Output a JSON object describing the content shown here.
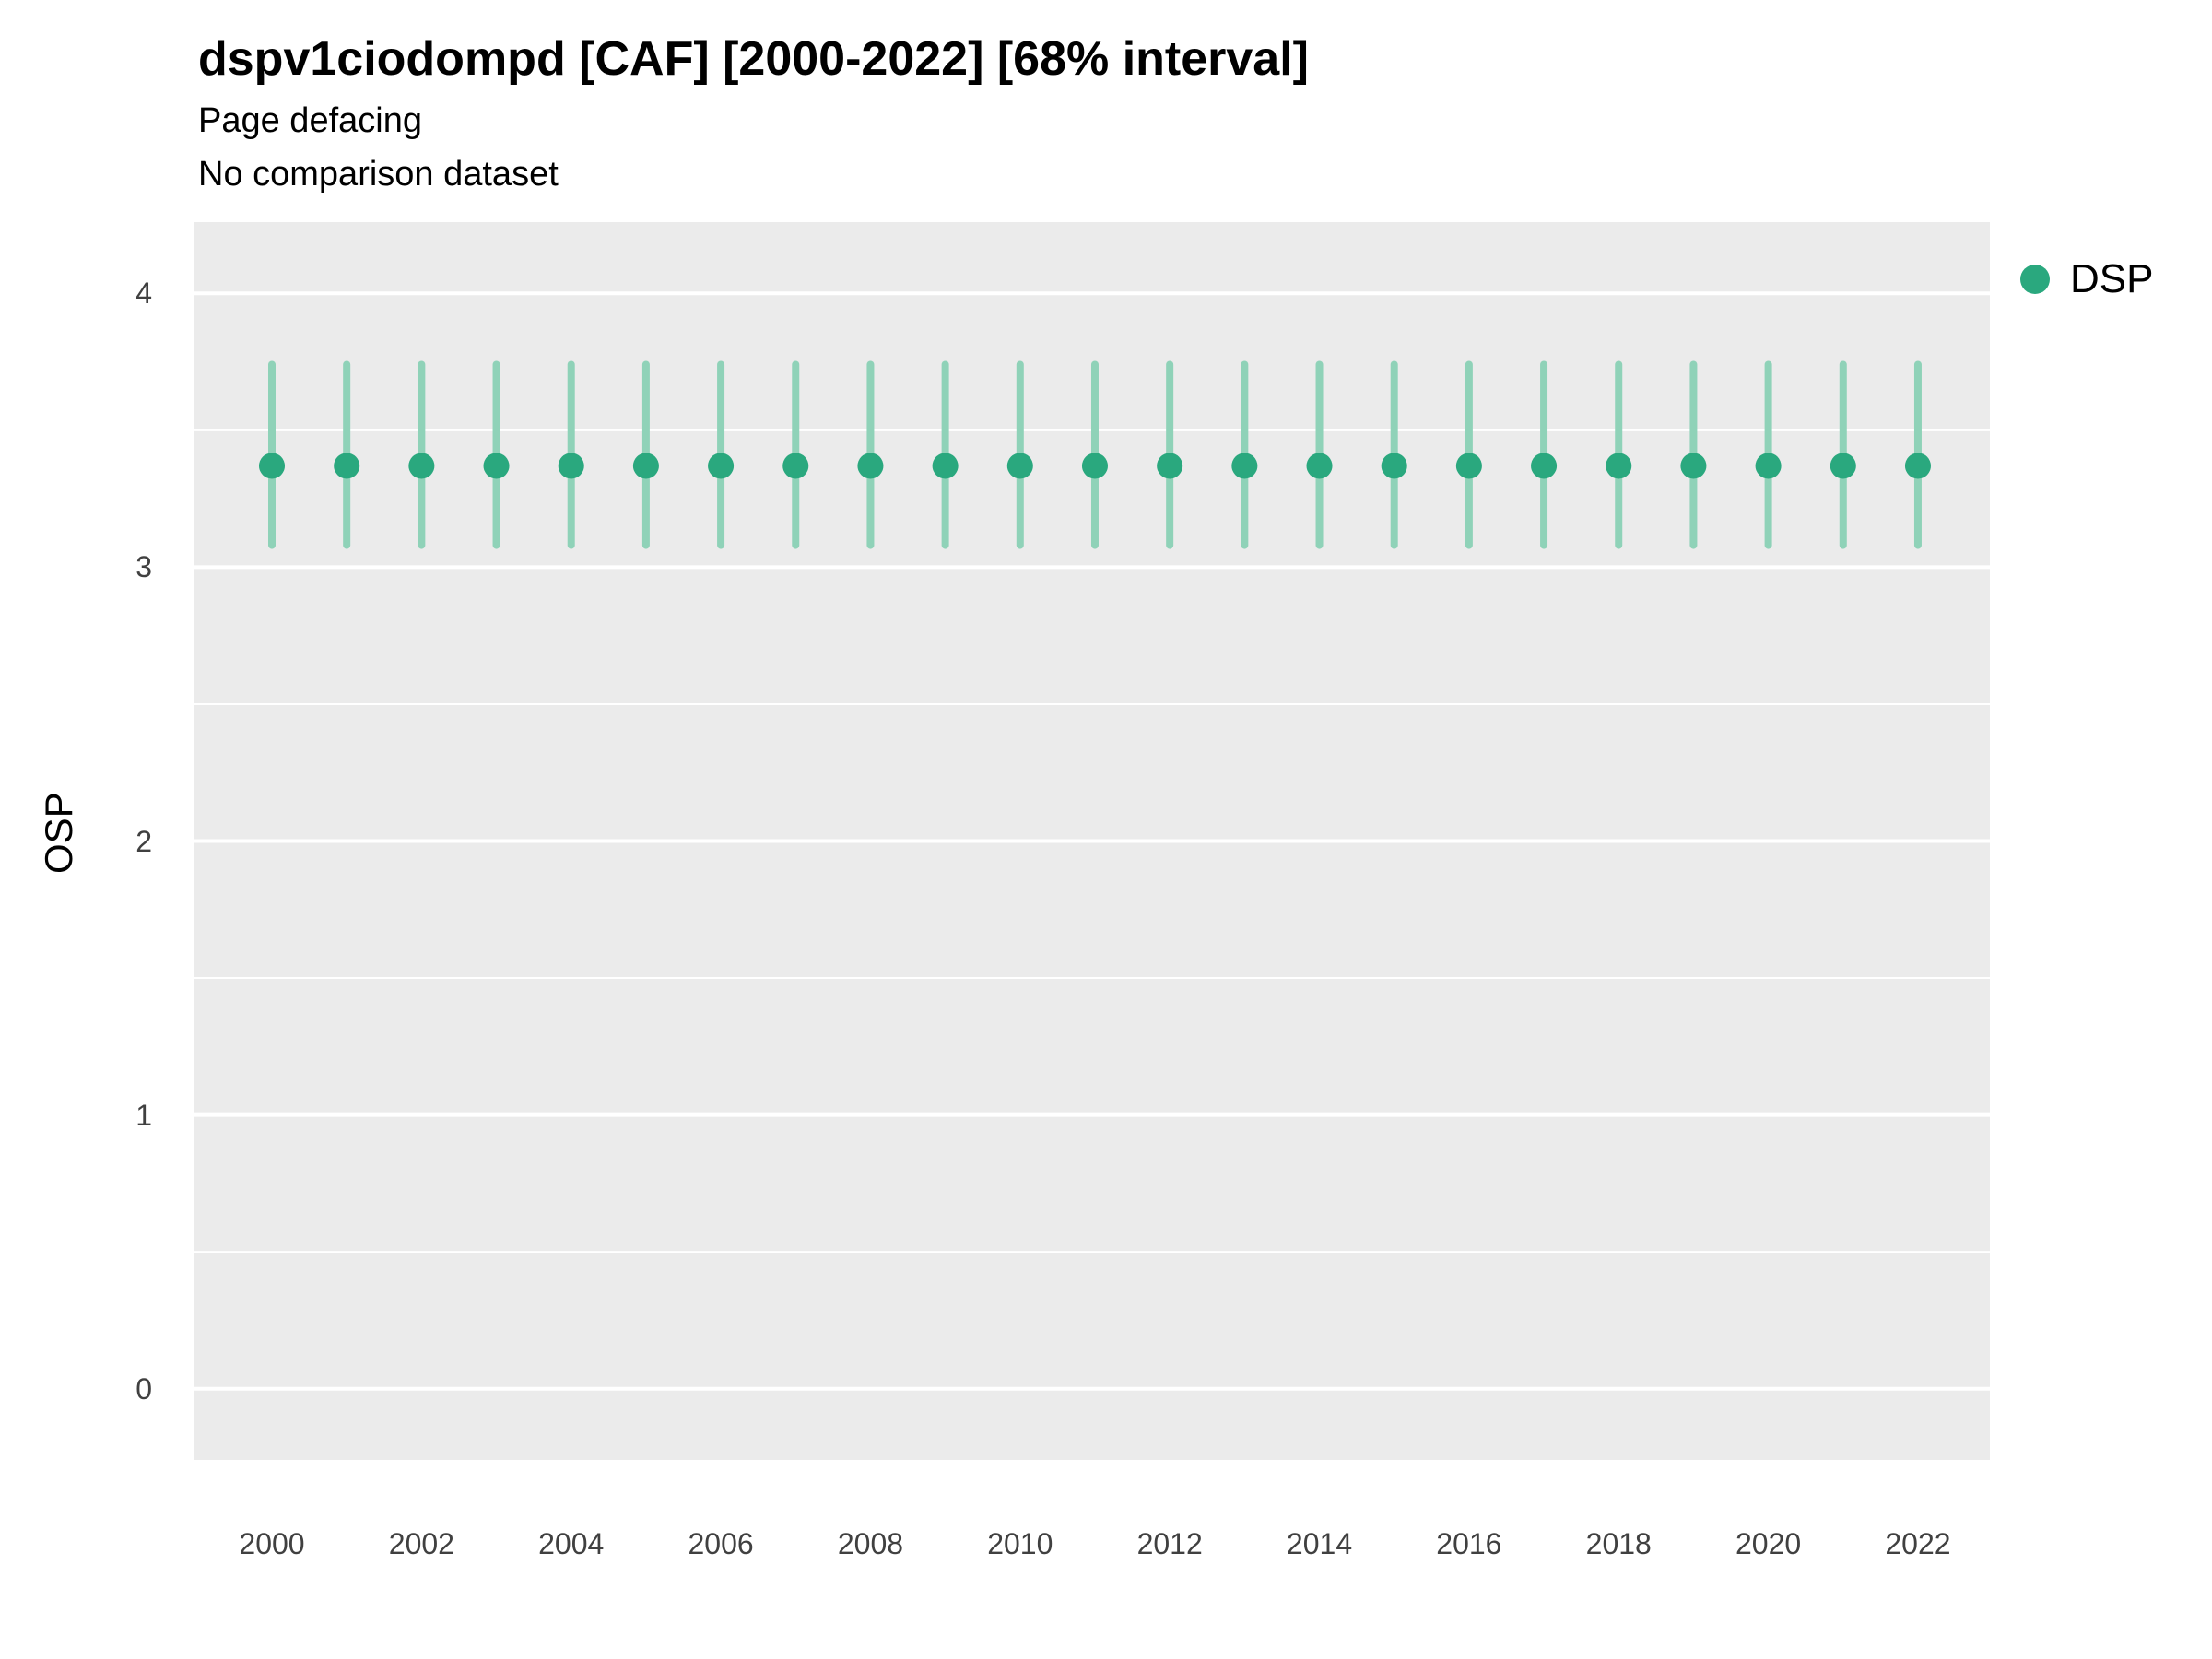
{
  "header": {
    "title": "dspv1ciodompd [CAF] [2000-2022] [68% interval]",
    "subtitle1": "Page defacing",
    "subtitle2": "No comparison dataset"
  },
  "axes": {
    "y_label": "OSP"
  },
  "legend": {
    "label": "DSP"
  },
  "colors": {
    "point": "#2AA87E",
    "interval": "#8FD2B8",
    "panel_background": "#EBEBEB",
    "gridline": "#FFFFFF",
    "tick_text": "#404040"
  },
  "chart_data": {
    "type": "scatter",
    "title": "dspv1ciodompd [CAF] [2000-2022] [68% interval]",
    "subtitle": "Page defacing",
    "note": "No comparison dataset",
    "xlabel": "",
    "ylabel": "OSP",
    "legend_position": "right",
    "grid": true,
    "ylim": [
      -0.26,
      4.26
    ],
    "yticks": [
      0,
      1,
      2,
      3,
      4
    ],
    "yticks_minor": [
      0.5,
      1.5,
      2.5,
      3.5
    ],
    "xticks": [
      2000,
      2002,
      2004,
      2006,
      2008,
      2010,
      2012,
      2014,
      2016,
      2018,
      2020,
      2022
    ],
    "x": [
      2000,
      2001,
      2002,
      2003,
      2004,
      2005,
      2006,
      2007,
      2008,
      2009,
      2010,
      2011,
      2012,
      2013,
      2014,
      2015,
      2016,
      2017,
      2018,
      2019,
      2020,
      2021,
      2022
    ],
    "series": [
      {
        "name": "DSP",
        "y": [
          3.37,
          3.37,
          3.37,
          3.37,
          3.37,
          3.37,
          3.37,
          3.37,
          3.37,
          3.37,
          3.37,
          3.37,
          3.37,
          3.37,
          3.37,
          3.37,
          3.37,
          3.37,
          3.37,
          3.37,
          3.37,
          3.37,
          3.37
        ],
        "low": [
          3.08,
          3.08,
          3.08,
          3.08,
          3.08,
          3.08,
          3.08,
          3.08,
          3.08,
          3.08,
          3.08,
          3.08,
          3.08,
          3.08,
          3.08,
          3.08,
          3.08,
          3.08,
          3.08,
          3.08,
          3.08,
          3.08,
          3.08
        ],
        "high": [
          3.74,
          3.74,
          3.74,
          3.74,
          3.74,
          3.74,
          3.74,
          3.74,
          3.74,
          3.74,
          3.74,
          3.74,
          3.74,
          3.74,
          3.74,
          3.74,
          3.74,
          3.74,
          3.74,
          3.74,
          3.74,
          3.74,
          3.74
        ]
      }
    ]
  }
}
